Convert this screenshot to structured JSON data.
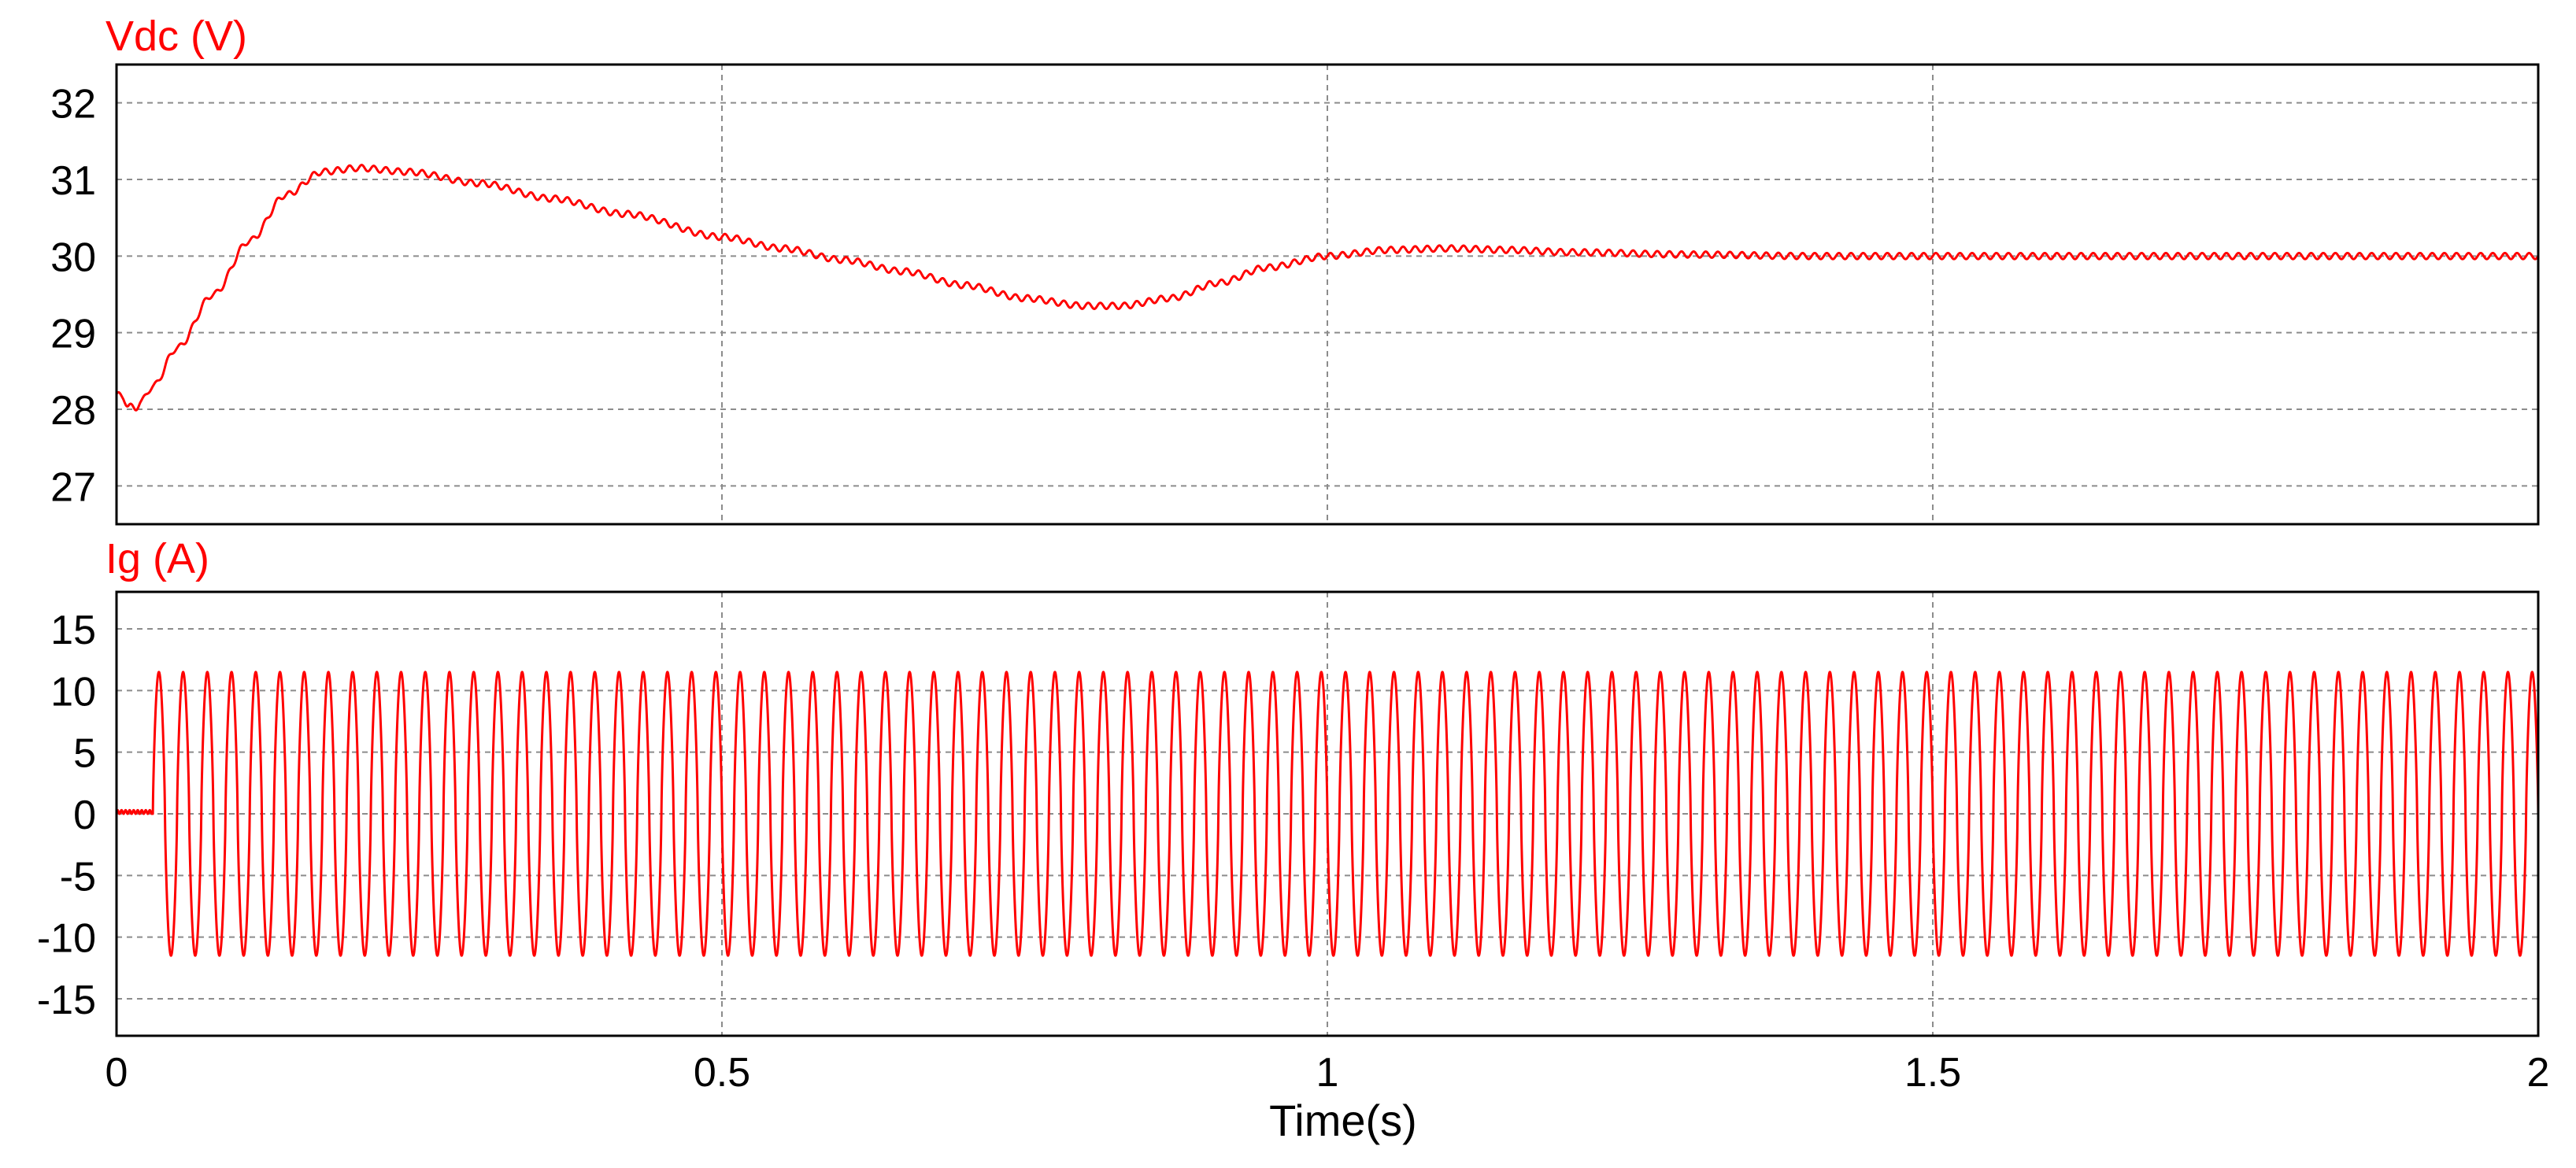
{
  "chart_data": [
    {
      "type": "line",
      "title": "Vdc (V)",
      "xlabel": "",
      "ylabel": "",
      "xlim": [
        0,
        2
      ],
      "ylim": [
        26.5,
        32.5
      ],
      "x_ticks": [
        0,
        0.5,
        1,
        1.5,
        2
      ],
      "y_ticks": [
        27,
        28,
        29,
        30,
        31,
        32
      ],
      "y_tick_labels": [
        "27",
        "28",
        "29",
        "30",
        "31",
        "32"
      ],
      "grid": true,
      "series": [
        {
          "color": "#ff0000",
          "x": [
            0,
            0.005,
            0.01,
            0.015,
            0.02,
            0.03,
            0.05,
            0.08,
            0.11,
            0.14,
            0.17,
            0.2,
            0.24,
            0.3,
            0.36,
            0.42,
            0.5,
            0.55,
            0.6,
            0.65,
            0.7,
            0.75,
            0.8,
            0.83,
            0.87,
            0.91,
            0.95,
            1.0,
            1.05,
            1.1,
            1.15,
            1.2,
            1.3,
            1.4,
            1.5,
            1.6,
            1.8,
            2.0
          ],
          "values": [
            28.2,
            28.15,
            28.05,
            28.0,
            28.1,
            28.3,
            28.8,
            29.5,
            30.2,
            30.8,
            31.1,
            31.15,
            31.1,
            30.95,
            30.75,
            30.55,
            30.25,
            30.1,
            29.95,
            29.8,
            29.62,
            29.45,
            29.35,
            29.35,
            29.45,
            29.65,
            29.85,
            30.0,
            30.08,
            30.1,
            30.08,
            30.05,
            30.02,
            30.0,
            30.0,
            30.0,
            30.0,
            30.0
          ],
          "ripple_amplitude": 0.04,
          "ripple_cycles": 100
        }
      ]
    },
    {
      "type": "line",
      "title": "Ig (A)",
      "xlabel": "Time(s)",
      "ylabel": "",
      "xlim": [
        0,
        2
      ],
      "ylim": [
        -18,
        18
      ],
      "x_ticks": [
        0,
        0.5,
        1,
        1.5,
        2
      ],
      "x_tick_labels": [
        "0",
        "0.5",
        "1",
        "1.5",
        "2"
      ],
      "y_ticks": [
        -15,
        -10,
        -5,
        0,
        5,
        10,
        15
      ],
      "y_tick_labels": [
        "-15",
        "-10",
        "-5",
        "0",
        "5",
        "10",
        "15"
      ],
      "grid": true,
      "series": [
        {
          "color": "#ff0000",
          "waveform": "sine",
          "amplitude": 11.5,
          "frequency_hz": 50,
          "start_time": 0.03,
          "end_time": 2.0,
          "pre_start_value": 0.3
        }
      ]
    }
  ]
}
